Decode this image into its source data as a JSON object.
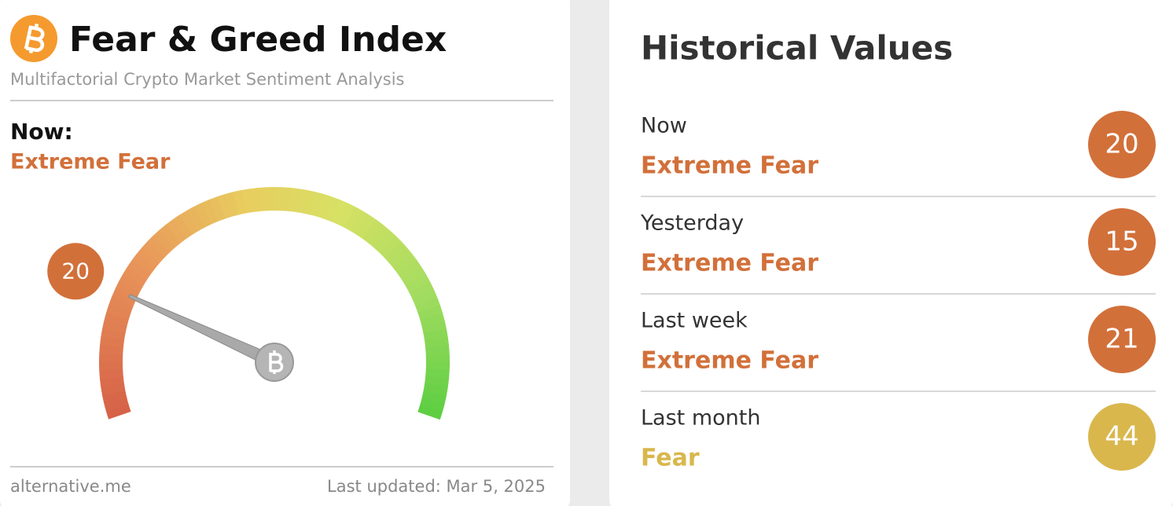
{
  "left": {
    "title": "Fear & Greed Index",
    "subtitle": "Multifactorial Crypto Market Sentiment Analysis",
    "now_label": "Now:",
    "classification": "Extreme Fear",
    "classification_color": "#d2703a",
    "gauge": {
      "value": 20,
      "min": 0,
      "max": 100,
      "color": "#d2703a"
    },
    "source": "alternative.me",
    "last_updated": "Last updated: Mar 5, 2025"
  },
  "right": {
    "title": "Historical Values",
    "rows": [
      {
        "label": "Now",
        "classification": "Extreme Fear",
        "value": 20,
        "color": "#d2703a"
      },
      {
        "label": "Yesterday",
        "classification": "Extreme Fear",
        "value": 15,
        "color": "#d2703a"
      },
      {
        "label": "Last week",
        "classification": "Extreme Fear",
        "value": 21,
        "color": "#d2703a"
      },
      {
        "label": "Last month",
        "classification": "Fear",
        "value": 44,
        "color": "#d9b74d"
      }
    ]
  }
}
